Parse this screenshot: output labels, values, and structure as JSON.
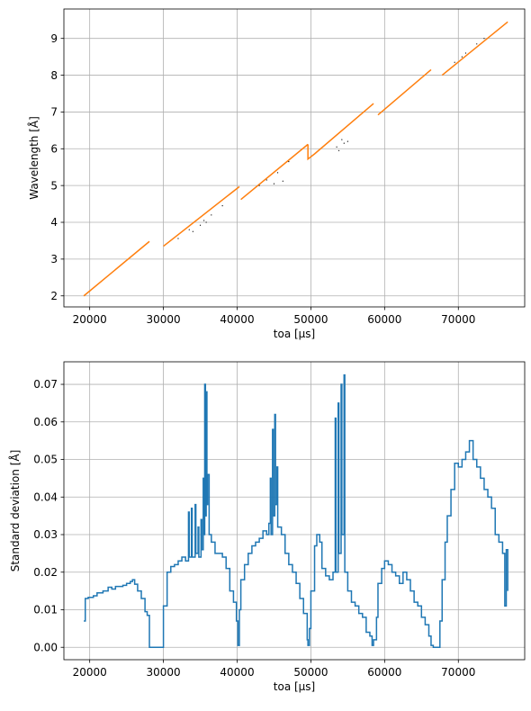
{
  "chart_data": [
    {
      "type": "line",
      "xlabel": "toa [µs]",
      "ylabel": "Wavelength [Å]",
      "xlim": [
        16500,
        79000
      ],
      "ylim": [
        1.7,
        9.8
      ],
      "xticks": [
        20000,
        30000,
        40000,
        50000,
        60000,
        70000
      ],
      "yticks": [
        2,
        3,
        4,
        5,
        6,
        7,
        8,
        9
      ],
      "grid": true,
      "series": [
        {
          "color": "#ff7f0e",
          "segments": [
            [
              [
                19200,
                2.0
              ],
              [
                28100,
                3.48
              ]
            ],
            [
              [
                30000,
                3.35
              ],
              [
                40300,
                4.97
              ]
            ],
            [
              [
                40500,
                4.62
              ],
              [
                49600,
                6.12
              ]
            ],
            [
              [
                49600,
                6.12
              ],
              [
                49600,
                5.72
              ],
              [
                50500,
                5.86
              ],
              [
                58500,
                7.23
              ]
            ],
            [
              [
                59100,
                6.92
              ],
              [
                66300,
                8.15
              ]
            ],
            [
              [
                67800,
                8.0
              ],
              [
                76700,
                9.45
              ]
            ]
          ]
        }
      ],
      "scatter": {
        "color": "#000000",
        "points": [
          [
            33500,
            3.8
          ],
          [
            35500,
            4.05
          ],
          [
            38000,
            4.45
          ],
          [
            32000,
            3.56
          ],
          [
            36500,
            4.2
          ],
          [
            44000,
            5.15
          ],
          [
            45500,
            5.35
          ],
          [
            47000,
            5.65
          ],
          [
            43000,
            5.0
          ],
          [
            55000,
            6.2
          ],
          [
            54500,
            6.15
          ],
          [
            53500,
            6.05
          ],
          [
            69500,
            8.35
          ],
          [
            71000,
            8.6
          ],
          [
            72500,
            8.85
          ],
          [
            73500,
            9.0
          ],
          [
            70500,
            8.5
          ],
          [
            34000,
            3.75
          ],
          [
            35800,
            4.0
          ],
          [
            35000,
            3.92
          ],
          [
            45000,
            5.05
          ],
          [
            46200,
            5.12
          ],
          [
            54200,
            6.25
          ],
          [
            53800,
            5.95
          ]
        ]
      }
    },
    {
      "type": "line",
      "xlabel": "toa [µs]",
      "ylabel": "Standard deviation [Å]",
      "xlim": [
        16500,
        79000
      ],
      "ylim": [
        -0.0033,
        0.076
      ],
      "xticks": [
        20000,
        30000,
        40000,
        50000,
        60000,
        70000
      ],
      "yticks": [
        0.0,
        0.01,
        0.02,
        0.03,
        0.04,
        0.05,
        0.06,
        0.07
      ],
      "ytick_labels": [
        "0.00",
        "0.01",
        "0.02",
        "0.03",
        "0.04",
        "0.05",
        "0.06",
        "0.07"
      ],
      "grid": true,
      "series": [
        {
          "color": "#1f77b4",
          "points": [
            [
              19200,
              0.007
            ],
            [
              19300,
              0.007
            ],
            [
              19400,
              0.013
            ],
            [
              19800,
              0.0133
            ],
            [
              20500,
              0.0137
            ],
            [
              21000,
              0.0145
            ],
            [
              21800,
              0.015
            ],
            [
              22500,
              0.016
            ],
            [
              23000,
              0.0155
            ],
            [
              23500,
              0.0162
            ],
            [
              24500,
              0.0165
            ],
            [
              25000,
              0.017
            ],
            [
              25500,
              0.0175
            ],
            [
              25800,
              0.018
            ],
            [
              26100,
              0.0168
            ],
            [
              26500,
              0.015
            ],
            [
              27000,
              0.013
            ],
            [
              27500,
              0.0095
            ],
            [
              27800,
              0.0085
            ],
            [
              28100,
              0.0055
            ],
            [
              28100,
              0.0
            ],
            [
              30000,
              0.0
            ],
            [
              30000,
              0.011
            ],
            [
              30500,
              0.02
            ],
            [
              31000,
              0.0215
            ],
            [
              31500,
              0.022
            ],
            [
              32000,
              0.023
            ],
            [
              32500,
              0.024
            ],
            [
              33000,
              0.023
            ],
            [
              33400,
              0.036
            ],
            [
              33500,
              0.024
            ],
            [
              33800,
              0.037
            ],
            [
              33900,
              0.024
            ],
            [
              34300,
              0.038
            ],
            [
              34400,
              0.025
            ],
            [
              34700,
              0.032
            ],
            [
              34800,
              0.024
            ],
            [
              35100,
              0.034
            ],
            [
              35200,
              0.026
            ],
            [
              35400,
              0.045
            ],
            [
              35500,
              0.03
            ],
            [
              35600,
              0.07
            ],
            [
              35700,
              0.035
            ],
            [
              35800,
              0.068
            ],
            [
              35900,
              0.038
            ],
            [
              36000,
              0.046
            ],
            [
              36200,
              0.03
            ],
            [
              36500,
              0.028
            ],
            [
              37000,
              0.025
            ],
            [
              38000,
              0.024
            ],
            [
              38500,
              0.021
            ],
            [
              39000,
              0.015
            ],
            [
              39500,
              0.012
            ],
            [
              39900,
              0.007
            ],
            [
              40100,
              0.0005
            ],
            [
              40300,
              0.01
            ],
            [
              40500,
              0.018
            ],
            [
              41000,
              0.022
            ],
            [
              41500,
              0.025
            ],
            [
              42000,
              0.027
            ],
            [
              42500,
              0.028
            ],
            [
              43000,
              0.029
            ],
            [
              43500,
              0.031
            ],
            [
              44000,
              0.03
            ],
            [
              44300,
              0.033
            ],
            [
              44500,
              0.045
            ],
            [
              44600,
              0.03
            ],
            [
              44800,
              0.058
            ],
            [
              44900,
              0.035
            ],
            [
              45100,
              0.062
            ],
            [
              45200,
              0.038
            ],
            [
              45400,
              0.048
            ],
            [
              45500,
              0.032
            ],
            [
              46000,
              0.03
            ],
            [
              46500,
              0.025
            ],
            [
              47000,
              0.022
            ],
            [
              47500,
              0.02
            ],
            [
              48000,
              0.017
            ],
            [
              48500,
              0.013
            ],
            [
              49000,
              0.009
            ],
            [
              49500,
              0.002
            ],
            [
              49600,
              0.0005
            ],
            [
              49800,
              0.005
            ],
            [
              50000,
              0.015
            ],
            [
              50500,
              0.027
            ],
            [
              50800,
              0.03
            ],
            [
              51200,
              0.028
            ],
            [
              51500,
              0.021
            ],
            [
              52000,
              0.019
            ],
            [
              52500,
              0.018
            ],
            [
              53000,
              0.02
            ],
            [
              53300,
              0.061
            ],
            [
              53400,
              0.02
            ],
            [
              53700,
              0.065
            ],
            [
              53800,
              0.025
            ],
            [
              54100,
              0.07
            ],
            [
              54200,
              0.03
            ],
            [
              54500,
              0.0725
            ],
            [
              54600,
              0.02
            ],
            [
              55000,
              0.015
            ],
            [
              55500,
              0.012
            ],
            [
              56000,
              0.011
            ],
            [
              56500,
              0.009
            ],
            [
              57000,
              0.008
            ],
            [
              57500,
              0.004
            ],
            [
              58000,
              0.003
            ],
            [
              58300,
              0.0005
            ],
            [
              58500,
              0.002
            ],
            [
              58900,
              0.008
            ],
            [
              59100,
              0.017
            ],
            [
              59600,
              0.021
            ],
            [
              60000,
              0.023
            ],
            [
              60500,
              0.022
            ],
            [
              61000,
              0.02
            ],
            [
              61500,
              0.019
            ],
            [
              62000,
              0.017
            ],
            [
              62500,
              0.02
            ],
            [
              63000,
              0.018
            ],
            [
              63500,
              0.015
            ],
            [
              64000,
              0.012
            ],
            [
              64500,
              0.011
            ],
            [
              65000,
              0.008
            ],
            [
              65500,
              0.006
            ],
            [
              66000,
              0.003
            ],
            [
              66300,
              0.0005
            ],
            [
              66600,
              0.0
            ],
            [
              67200,
              0.0
            ],
            [
              67500,
              0.007
            ],
            [
              67800,
              0.018
            ],
            [
              68200,
              0.028
            ],
            [
              68500,
              0.035
            ],
            [
              69000,
              0.042
            ],
            [
              69500,
              0.049
            ],
            [
              70000,
              0.048
            ],
            [
              70500,
              0.05
            ],
            [
              71000,
              0.052
            ],
            [
              71500,
              0.055
            ],
            [
              72000,
              0.05
            ],
            [
              72500,
              0.048
            ],
            [
              73000,
              0.045
            ],
            [
              73500,
              0.042
            ],
            [
              74000,
              0.04
            ],
            [
              74500,
              0.037
            ],
            [
              75000,
              0.03
            ],
            [
              75500,
              0.028
            ],
            [
              76000,
              0.025
            ],
            [
              76300,
              0.011
            ],
            [
              76500,
              0.026
            ],
            [
              76700,
              0.015
            ]
          ]
        }
      ]
    }
  ]
}
